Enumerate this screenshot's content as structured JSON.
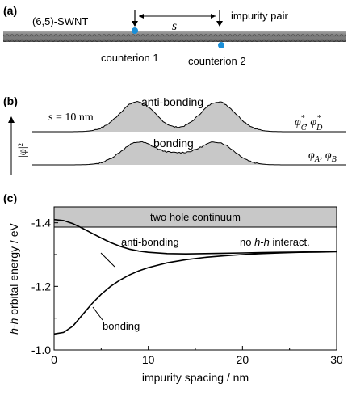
{
  "panel_a": {
    "label": "(a)",
    "nanotube_label": "(6,5)-SWNT",
    "spacing_symbol": "s",
    "pair_label": "impurity pair",
    "counterion_1": "counterion 1",
    "counterion_2": "counterion 2",
    "counterion_color": "#1a8fd8"
  },
  "panel_b": {
    "label": "(b)",
    "spacing_text": "s = 10 nm",
    "y_axis_label": "|φ|²",
    "antibonding_label": "anti-bonding",
    "bonding_label": "bonding",
    "antibonding_states": "φ*C, φ*D",
    "bonding_states": "φA, φB",
    "fill_color": "#c8c8c8"
  },
  "panel_c": {
    "label": "(c)",
    "continuum_label": "two hole continuum",
    "no_interaction_label": "no h-h interact.",
    "antibonding_label": "anti-bonding",
    "bonding_label": "bonding",
    "continuum_color": "#c8c8c8"
  },
  "chart_data": {
    "type": "line",
    "xlabel": "impurity spacing / nm",
    "ylabel": "h-h orbital energy / eV",
    "xlim": [
      0,
      30
    ],
    "ylim": [
      -1.0,
      -1.45
    ],
    "x_ticks": [
      "0",
      "10",
      "20",
      "30"
    ],
    "y_ticks": [
      "-1.4",
      "-1.2",
      "-1.0"
    ],
    "series": [
      {
        "name": "anti-bonding",
        "x": [
          0,
          1,
          2,
          3,
          4,
          5,
          6,
          7,
          8,
          9,
          10,
          12,
          14,
          16,
          18,
          20,
          22,
          24,
          26,
          28,
          30
        ],
        "values": [
          -1.41,
          -1.407,
          -1.397,
          -1.383,
          -1.367,
          -1.352,
          -1.338,
          -1.326,
          -1.317,
          -1.311,
          -1.307,
          -1.303,
          -1.302,
          -1.303,
          -1.304,
          -1.305,
          -1.306,
          -1.307,
          -1.308,
          -1.309,
          -1.31
        ]
      },
      {
        "name": "bonding",
        "x": [
          0,
          1,
          2,
          3,
          4,
          5,
          6,
          7,
          8,
          9,
          10,
          12,
          14,
          16,
          18,
          20,
          22,
          24,
          26,
          28,
          30
        ],
        "values": [
          -1.05,
          -1.055,
          -1.075,
          -1.11,
          -1.145,
          -1.175,
          -1.2,
          -1.22,
          -1.236,
          -1.249,
          -1.259,
          -1.274,
          -1.284,
          -1.291,
          -1.296,
          -1.3,
          -1.303,
          -1.305,
          -1.307,
          -1.308,
          -1.309
        ]
      }
    ]
  }
}
